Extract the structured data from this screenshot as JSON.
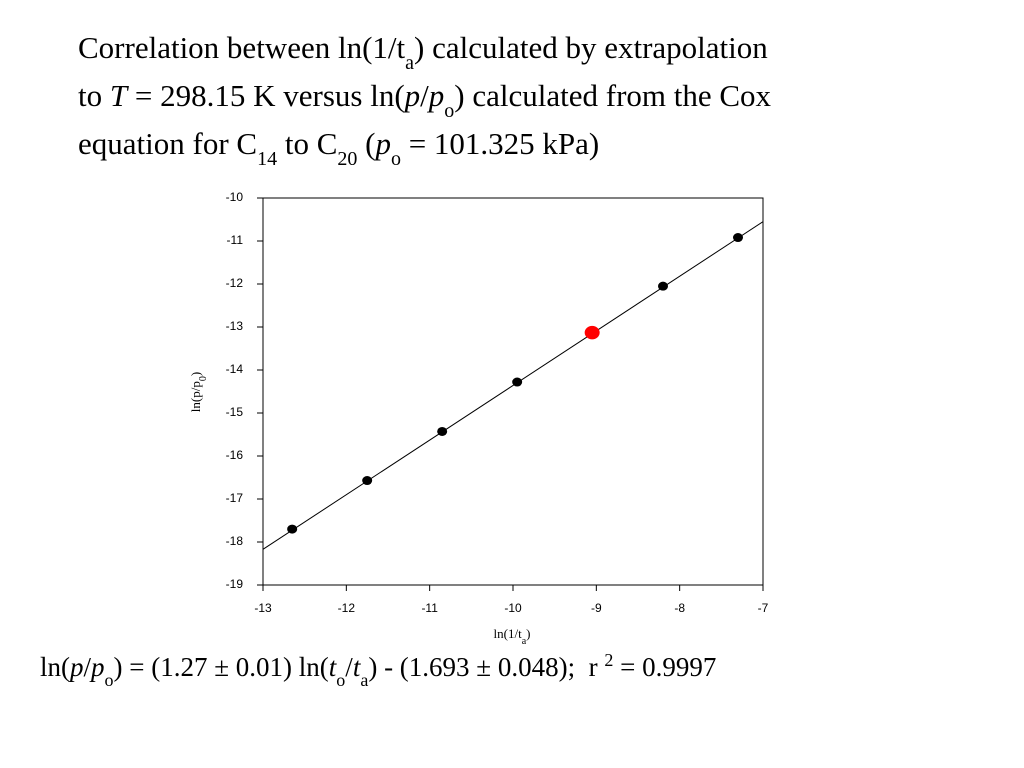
{
  "slide": {
    "title": [
      "Correlation between ln(1/t",
      "a",
      ") calculated by extrapolation",
      "to ",
      "T",
      " = 298.15 K versus ln(",
      "p",
      "/",
      "p",
      "o",
      ") calculated from the Cox",
      "equation for C",
      "14",
      " to C",
      "20",
      " (",
      "p",
      "o",
      " = 101.325 kPa)"
    ],
    "equation": [
      "ln(",
      "p",
      "/",
      "p",
      "o",
      ") = (1.27 ± 0.01) ln(",
      "t",
      "o",
      "/",
      "t",
      "a",
      ") - (1.693 ± 0.048);  r ",
      "2",
      " = 0.9997"
    ]
  },
  "chart_data": {
    "type": "scatter",
    "xlabel": [
      "ln(1/t",
      "a",
      ")"
    ],
    "ylabel": [
      "ln(p/p",
      "0",
      ")"
    ],
    "xlim": [
      -13,
      -7
    ],
    "xticks": [
      -13,
      -12,
      -11,
      -10,
      -9,
      -8,
      -7
    ],
    "ylim": [
      -19,
      -10
    ],
    "yticks": [
      -10,
      -11,
      -12,
      -13,
      -14,
      -15,
      -16,
      -17,
      -18,
      -19
    ],
    "series": [
      {
        "color": "#000000",
        "x": [
          -12.65,
          -11.75,
          -10.85,
          -9.95,
          -9.05,
          -8.2,
          -7.3
        ],
        "values": [
          -17.7,
          -16.57,
          -15.43,
          -14.28,
          -13.13,
          -12.05,
          -10.92
        ]
      },
      {
        "color": "#ff0000",
        "x": [
          -9.05
        ],
        "values": [
          -13.13
        ]
      }
    ],
    "fit": {
      "color": "#000000",
      "x": [
        -13,
        -7
      ],
      "values": [
        -18.17,
        -10.55
      ]
    }
  }
}
